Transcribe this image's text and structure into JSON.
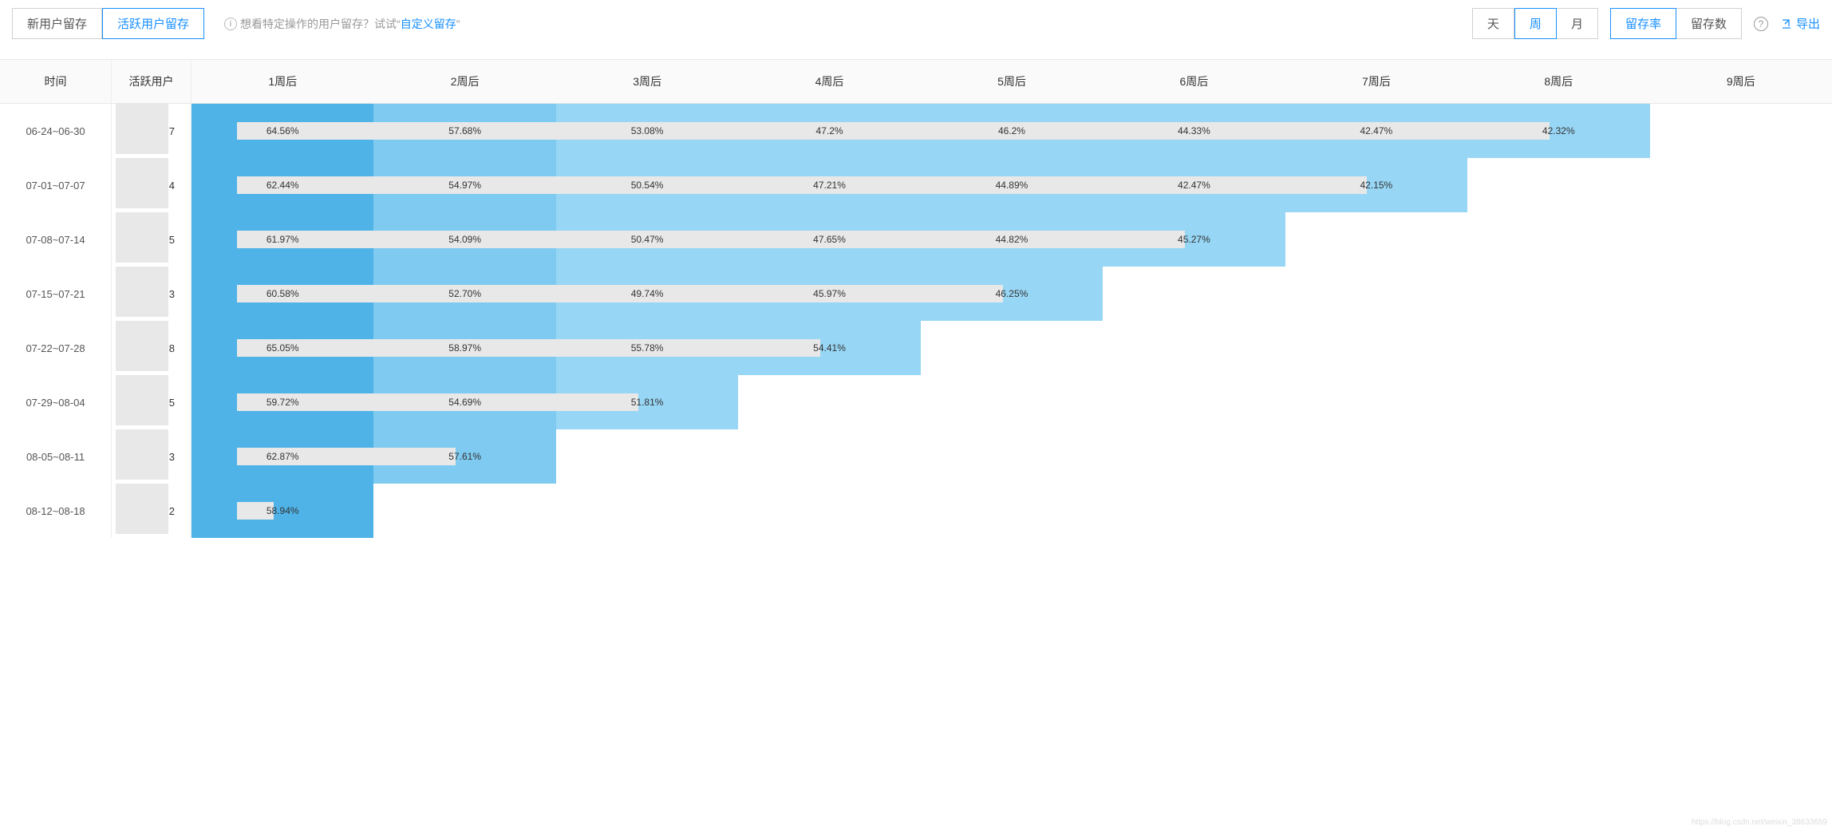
{
  "toolbar": {
    "tabs": {
      "new_user": "新用户留存",
      "active_user": "活跃用户留存",
      "active_idx": 1
    },
    "hint_prefix": "想看特定操作的用户留存？试试",
    "hint_link": "自定义留存",
    "granularity": {
      "day": "天",
      "week": "周",
      "month": "月",
      "active_idx": 1
    },
    "metric": {
      "rate": "留存率",
      "count": "留存数",
      "active_idx": 0
    },
    "export": "导出"
  },
  "table": {
    "headers": {
      "time": "时间",
      "users": "活跃用户",
      "week_suffix": "周后",
      "weeks": [
        1,
        2,
        3,
        4,
        5,
        6,
        7,
        8,
        9
      ]
    },
    "colors": {
      "shade1": "#4fb3e8",
      "shade2": "#7ecaf0",
      "shade3": "#97d6f5",
      "blur": "#e8e8e8",
      "border": "#e8e8e8"
    },
    "rows": [
      {
        "time": "06-24~06-30",
        "user_tail": "7",
        "cells": [
          {
            "v": "64.56%",
            "c": "#4fb3e8"
          },
          {
            "v": "57.68%",
            "c": "#7ecaf0"
          },
          {
            "v": "53.08%",
            "c": "#97d6f5"
          },
          {
            "v": "47.2%",
            "c": "#97d6f5"
          },
          {
            "v": "46.2%",
            "c": "#97d6f5"
          },
          {
            "v": "44.33%",
            "c": "#97d6f5"
          },
          {
            "v": "42.47%",
            "c": "#97d6f5"
          },
          {
            "v": "42.32%",
            "c": "#97d6f5"
          }
        ],
        "bar_span": 8
      },
      {
        "time": "07-01~07-07",
        "user_tail": "4",
        "cells": [
          {
            "v": "62.44%",
            "c": "#4fb3e8"
          },
          {
            "v": "54.97%",
            "c": "#7ecaf0"
          },
          {
            "v": "50.54%",
            "c": "#97d6f5"
          },
          {
            "v": "47.21%",
            "c": "#97d6f5"
          },
          {
            "v": "44.89%",
            "c": "#97d6f5"
          },
          {
            "v": "42.47%",
            "c": "#97d6f5"
          },
          {
            "v": "42.15%",
            "c": "#97d6f5"
          }
        ],
        "bar_span": 7
      },
      {
        "time": "07-08~07-14",
        "user_tail": "5",
        "cells": [
          {
            "v": "61.97%",
            "c": "#4fb3e8"
          },
          {
            "v": "54.09%",
            "c": "#7ecaf0"
          },
          {
            "v": "50.47%",
            "c": "#97d6f5"
          },
          {
            "v": "47.65%",
            "c": "#97d6f5"
          },
          {
            "v": "44.82%",
            "c": "#97d6f5"
          },
          {
            "v": "45.27%",
            "c": "#97d6f5"
          }
        ],
        "bar_span": 6
      },
      {
        "time": "07-15~07-21",
        "user_tail": "3",
        "cells": [
          {
            "v": "60.58%",
            "c": "#4fb3e8"
          },
          {
            "v": "52.70%",
            "c": "#7ecaf0"
          },
          {
            "v": "49.74%",
            "c": "#97d6f5"
          },
          {
            "v": "45.97%",
            "c": "#97d6f5"
          },
          {
            "v": "46.25%",
            "c": "#97d6f5"
          }
        ],
        "bar_span": 5
      },
      {
        "time": "07-22~07-28",
        "user_tail": "8",
        "cells": [
          {
            "v": "65.05%",
            "c": "#4fb3e8"
          },
          {
            "v": "58.97%",
            "c": "#7ecaf0"
          },
          {
            "v": "55.78%",
            "c": "#97d6f5"
          },
          {
            "v": "54.41%",
            "c": "#97d6f5"
          }
        ],
        "bar_span": 4
      },
      {
        "time": "07-29~08-04",
        "user_tail": "5",
        "cells": [
          {
            "v": "59.72%",
            "c": "#4fb3e8"
          },
          {
            "v": "54.69%",
            "c": "#7ecaf0"
          },
          {
            "v": "51.81%",
            "c": "#97d6f5"
          }
        ],
        "bar_span": 3
      },
      {
        "time": "08-05~08-11",
        "user_tail": "3",
        "cells": [
          {
            "v": "62.87%",
            "c": "#4fb3e8"
          },
          {
            "v": "57.61%",
            "c": "#7ecaf0"
          }
        ],
        "bar_span": 2
      },
      {
        "time": "08-12~08-18",
        "user_tail": "2",
        "cells": [
          {
            "v": "58.94%",
            "c": "#4fb3e8"
          }
        ],
        "bar_span": 1
      }
    ]
  },
  "watermark": "https://blog.csdn.net/weixin_38633659"
}
